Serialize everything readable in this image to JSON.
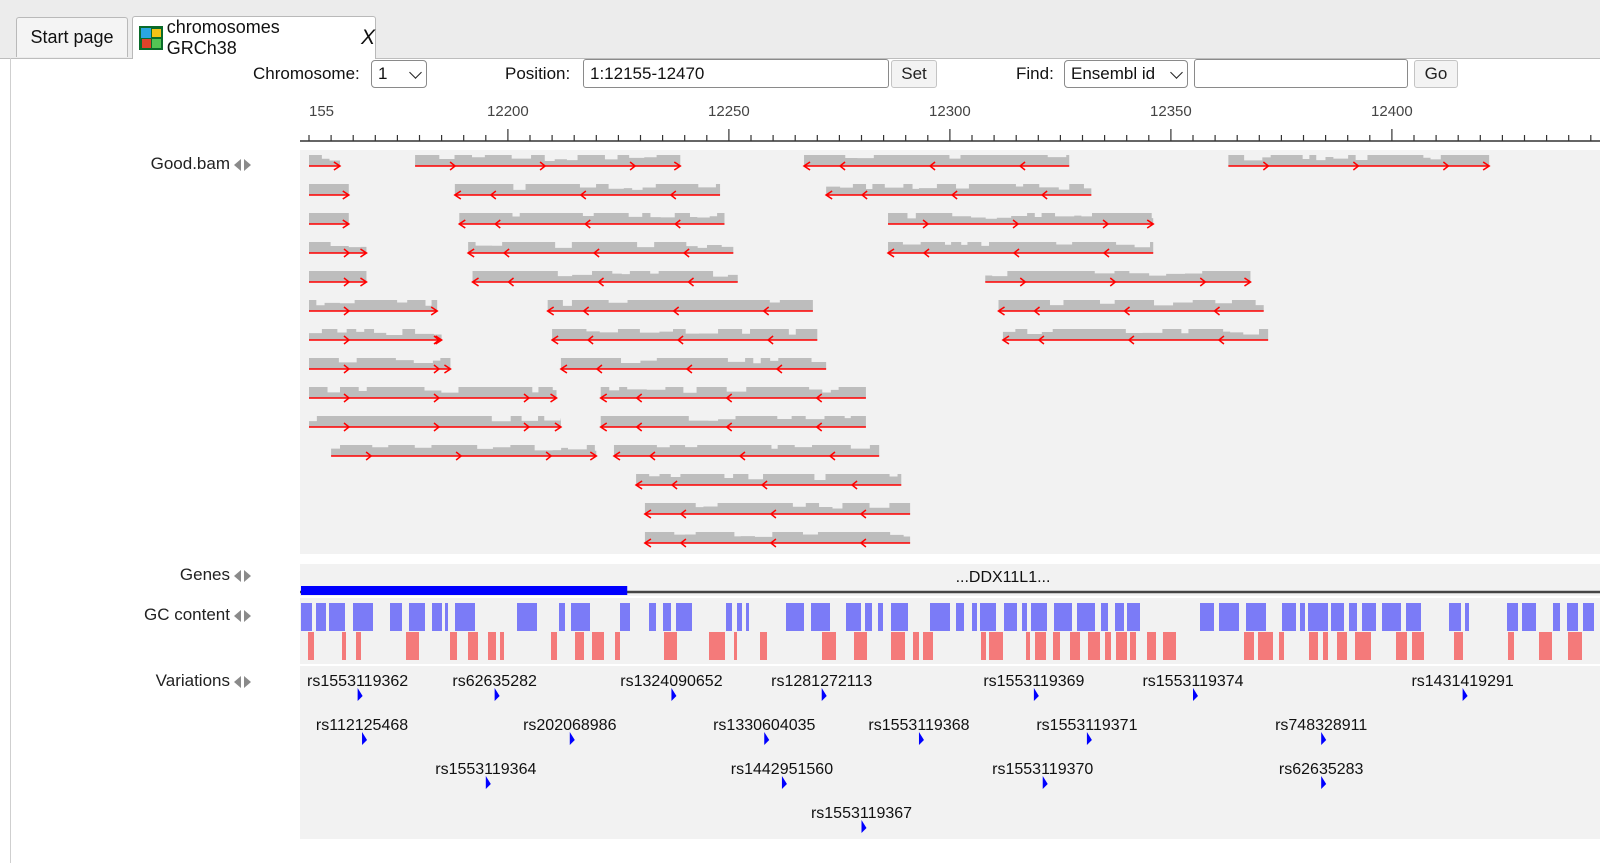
{
  "tabs": [
    {
      "label": "Start page"
    },
    {
      "label": "chromosomes GRCh38",
      "close": "X"
    }
  ],
  "toolbar": {
    "chromosome_label": "Chromosome:",
    "chromosome_value": "1",
    "position_label": "Position:",
    "position_value": "1:12155-12470",
    "set_label": "Set",
    "find_label": "Find:",
    "find_type": "Ensembl id",
    "find_value": "",
    "go_label": "Go"
  },
  "ruler": {
    "start": 12155,
    "end": 12470,
    "ticks": [
      "155",
      "12200",
      "12250",
      "12300",
      "12350",
      "12400"
    ],
    "tick_positions": [
      12155,
      12200,
      12250,
      12300,
      12350,
      12400
    ]
  },
  "tracks": {
    "reads": {
      "label": "Good.bam"
    },
    "genes": {
      "label": "Genes",
      "gene_name": "...DDX11L1...",
      "exon_end": 12227
    },
    "gc": {
      "label": "GC content"
    },
    "variations": {
      "label": "Variations"
    }
  },
  "reads": [
    {
      "start": 12155,
      "end": 12162,
      "strand": "+",
      "row": 0
    },
    {
      "start": 12179,
      "end": 12239,
      "strand": "+",
      "row": 0
    },
    {
      "start": 12267,
      "end": 12327,
      "strand": "-",
      "row": 0
    },
    {
      "start": 12363,
      "end": 12422,
      "strand": "+",
      "row": 0
    },
    {
      "start": 12155,
      "end": 12164,
      "strand": "+",
      "row": 1
    },
    {
      "start": 12188,
      "end": 12248,
      "strand": "-",
      "row": 1
    },
    {
      "start": 12272,
      "end": 12332,
      "strand": "-",
      "row": 1
    },
    {
      "start": 12155,
      "end": 12164,
      "strand": "+",
      "row": 2
    },
    {
      "start": 12189,
      "end": 12249,
      "strand": "-",
      "row": 2
    },
    {
      "start": 12286,
      "end": 12346,
      "strand": "+",
      "row": 2
    },
    {
      "start": 12155,
      "end": 12168,
      "strand": "+",
      "row": 3
    },
    {
      "start": 12191,
      "end": 12251,
      "strand": "-",
      "row": 3
    },
    {
      "start": 12286,
      "end": 12346,
      "strand": "-",
      "row": 3
    },
    {
      "start": 12155,
      "end": 12168,
      "strand": "+",
      "row": 4
    },
    {
      "start": 12192,
      "end": 12252,
      "strand": "-",
      "row": 4
    },
    {
      "start": 12308,
      "end": 12368,
      "strand": "+",
      "row": 4
    },
    {
      "start": 12155,
      "end": 12184,
      "strand": "+",
      "row": 5
    },
    {
      "start": 12209,
      "end": 12269,
      "strand": "-",
      "row": 5
    },
    {
      "start": 12311,
      "end": 12371,
      "strand": "-",
      "row": 5
    },
    {
      "start": 12155,
      "end": 12185,
      "strand": "+",
      "row": 6
    },
    {
      "start": 12210,
      "end": 12270,
      "strand": "-",
      "row": 6
    },
    {
      "start": 12312,
      "end": 12372,
      "strand": "-",
      "row": 6
    },
    {
      "start": 12155,
      "end": 12187,
      "strand": "+",
      "row": 7
    },
    {
      "start": 12212,
      "end": 12272,
      "strand": "-",
      "row": 7
    },
    {
      "start": 12155,
      "end": 12211,
      "strand": "+",
      "row": 8
    },
    {
      "start": 12221,
      "end": 12281,
      "strand": "-",
      "row": 8
    },
    {
      "start": 12155,
      "end": 12212,
      "strand": "+",
      "row": 9
    },
    {
      "start": 12221,
      "end": 12281,
      "strand": "-",
      "row": 9
    },
    {
      "start": 12160,
      "end": 12220,
      "strand": "+",
      "row": 10
    },
    {
      "start": 12224,
      "end": 12284,
      "strand": "-",
      "row": 10
    },
    {
      "start": 12229,
      "end": 12289,
      "strand": "-",
      "row": 11
    },
    {
      "start": 12231,
      "end": 12291,
      "strand": "-",
      "row": 12
    },
    {
      "start": 12231,
      "end": 12291,
      "strand": "-",
      "row": 13
    }
  ],
  "variations": [
    {
      "id": "rs1553119362",
      "pos": 12166,
      "row": 0
    },
    {
      "id": "rs62635282",
      "pos": 12197,
      "row": 0
    },
    {
      "id": "rs1324090652",
      "pos": 12237,
      "row": 0
    },
    {
      "id": "rs1281272113",
      "pos": 12271,
      "row": 0
    },
    {
      "id": "rs1553119369",
      "pos": 12319,
      "row": 0
    },
    {
      "id": "rs1553119374",
      "pos": 12355,
      "row": 0
    },
    {
      "id": "rs1431419291",
      "pos": 12416,
      "row": 0
    },
    {
      "id": "rs112125468",
      "pos": 12167,
      "row": 1
    },
    {
      "id": "rs202068986",
      "pos": 12214,
      "row": 1
    },
    {
      "id": "rs1330604035",
      "pos": 12258,
      "row": 1
    },
    {
      "id": "rs1553119368",
      "pos": 12293,
      "row": 1
    },
    {
      "id": "rs1553119371",
      "pos": 12331,
      "row": 1
    },
    {
      "id": "rs748328911",
      "pos": 12384,
      "row": 1
    },
    {
      "id": "rs1553119364",
      "pos": 12195,
      "row": 2
    },
    {
      "id": "rs1442951560",
      "pos": 12262,
      "row": 2
    },
    {
      "id": "rs1553119370",
      "pos": 12321,
      "row": 2
    },
    {
      "id": "rs62635283",
      "pos": 12384,
      "row": 2
    },
    {
      "id": "rs1553119367",
      "pos": 12280,
      "row": 3
    }
  ],
  "colors": {
    "read_fill": "#bdbdbd",
    "read_line": "#ff0000",
    "gene": "#0000ff",
    "gc_high": "#7b7bf7",
    "gc_low": "#f47a7a",
    "variation": "#0000ff"
  }
}
